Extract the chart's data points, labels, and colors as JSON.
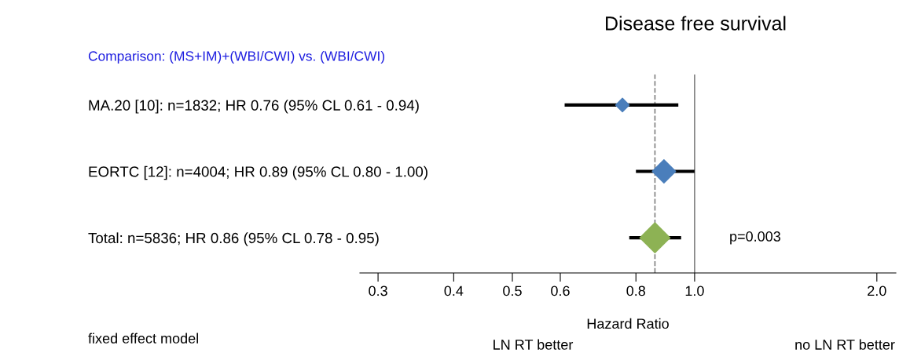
{
  "chart_data": {
    "type": "scatter",
    "title": "Disease free survival",
    "subtitle": "Comparison: (MS+IM)+(WBI/CWI) vs. (WBI/CWI)",
    "xlabel": "Hazard Ratio",
    "orientation": "horizontal",
    "log": "x",
    "categories": [
      "MA.20 [10]: n=1832; HR 0.76 (95% CL 0.61 - 0.94)",
      "EORTC [12]: n=4004; HR 0.89 (95% CL 0.80 - 1.00)",
      "Total: n=5836; HR 0.86 (95% CL 0.78 - 0.95)"
    ],
    "values": [
      0.76,
      0.89,
      0.86
    ],
    "sizes": [
      0.2,
      0.6,
      1
    ],
    "errors": [
      [
        0.61,
        0.94
      ],
      [
        0.8,
        1.0
      ],
      [
        0.78,
        0.95
      ]
    ],
    "colors": [
      "#4a7ebb",
      "#4a7ebb",
      "#8db254"
    ],
    "marker": "diamond",
    "xlim": [
      0.28,
      2.15
    ],
    "xticks": [
      {
        "value": 0.3,
        "label": "0.3"
      },
      {
        "value": 0.4,
        "label": "0.4"
      },
      {
        "value": 0.5,
        "label": "0.5"
      },
      {
        "value": 0.6,
        "label": "0.6"
      },
      {
        "value": 0.8,
        "label": "0.8"
      },
      {
        "value": 1.0,
        "label": "1.0"
      },
      {
        "value": 2.0,
        "label": "2.0"
      }
    ],
    "ref_lines": [
      {
        "axis": "x",
        "value": 0.86,
        "color": "#808080",
        "line_style": "dashed"
      },
      {
        "axis": "x",
        "value": 1.0,
        "color": "#808080",
        "line_style": "solid"
      }
    ],
    "annotations": [
      "p=0.003",
      "fixed effect model",
      "LN RT better",
      "no LN RT better"
    ],
    "grid": false,
    "legend": false
  }
}
